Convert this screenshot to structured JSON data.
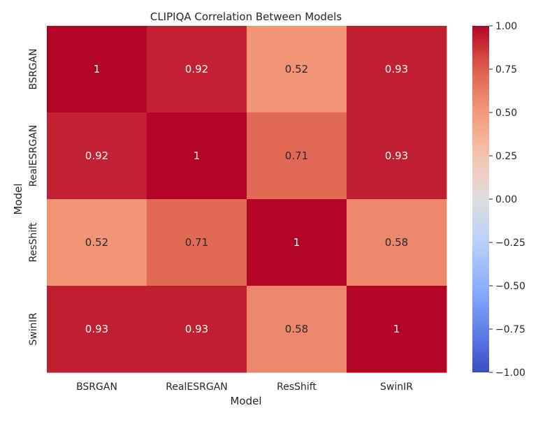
{
  "chart_data": {
    "type": "heatmap",
    "title": "CLIPIQA Correlation Between Models",
    "xlabel": "Model",
    "ylabel": "Model",
    "x_categories": [
      "BSRGAN",
      "RealESRGAN",
      "ResShift",
      "SwinIR"
    ],
    "y_categories": [
      "BSRGAN",
      "RealESRGAN",
      "ResShift",
      "SwinIR"
    ],
    "values": [
      [
        1,
        0.92,
        0.52,
        0.93
      ],
      [
        0.92,
        1,
        0.71,
        0.93
      ],
      [
        0.52,
        0.71,
        1,
        0.58
      ],
      [
        0.93,
        0.93,
        0.58,
        1
      ]
    ],
    "cell_labels": [
      [
        "1",
        "0.92",
        "0.52",
        "0.93"
      ],
      [
        "0.92",
        "1",
        "0.71",
        "0.93"
      ],
      [
        "0.52",
        "0.71",
        "1",
        "0.58"
      ],
      [
        "0.93",
        "0.93",
        "0.58",
        "1"
      ]
    ],
    "colormap": "coolwarm",
    "vmin": -1,
    "vmax": 1,
    "colorbar_ticks": [
      1.0,
      0.75,
      0.5,
      0.25,
      0.0,
      -0.25,
      -0.5,
      -0.75,
      -1.0
    ],
    "colorbar_tick_labels": [
      "1.00",
      "0.75",
      "0.50",
      "0.25",
      "0.00",
      "−0.25",
      "−0.50",
      "−0.75",
      "−1.00"
    ]
  }
}
